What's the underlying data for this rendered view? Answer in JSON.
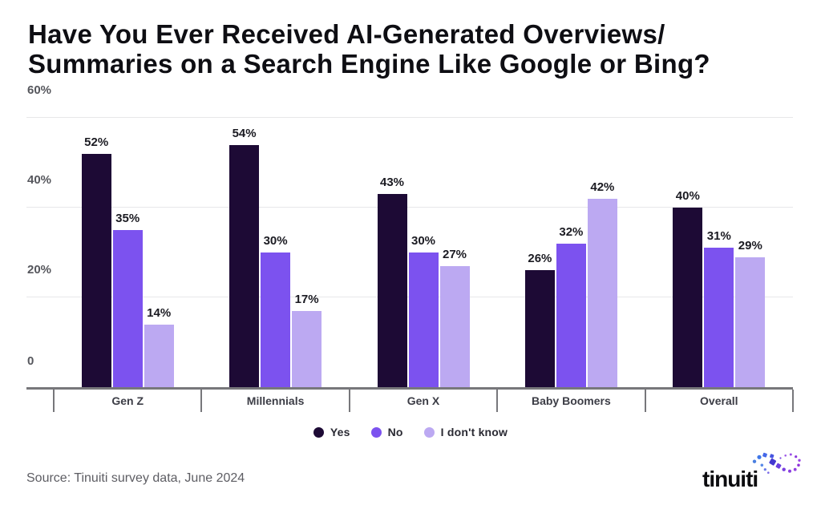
{
  "title": {
    "line1": "Have You Ever Received AI-Generated Overviews/",
    "line2": "Summaries on a Search Engine Like Google or Bing?"
  },
  "chart_data": {
    "type": "bar",
    "title": "Have You Ever Received AI-Generated Overviews/Summaries on a Search Engine Like Google or Bing?",
    "categories": [
      "Gen Z",
      "Millennials",
      "Gen X",
      "Baby Boomers",
      "Overall"
    ],
    "series": [
      {
        "name": "Yes",
        "color": "#1d0a35",
        "values": [
          52,
          54,
          43,
          26,
          40
        ]
      },
      {
        "name": "No",
        "color": "#7c52ef",
        "values": [
          35,
          30,
          30,
          32,
          31
        ]
      },
      {
        "name": "I don't know",
        "color": "#bca9f2",
        "values": [
          14,
          17,
          27,
          42,
          29
        ]
      }
    ],
    "value_label_suffix": "%",
    "xlabel": "",
    "ylabel": "",
    "ylim": [
      0,
      60
    ],
    "grid": true,
    "legend_position": "bottom",
    "y_axis": {
      "ticks": [
        {
          "value": 60,
          "label": "60%"
        },
        {
          "value": 40,
          "label": "40%"
        },
        {
          "value": 20,
          "label": "20%"
        },
        {
          "value": 0,
          "label": "0"
        }
      ]
    }
  },
  "footer": {
    "source": "Source: Tinuiti survey data, June 2024",
    "logo_text": "tinuiti"
  },
  "colors": {
    "yes": "#1d0a35",
    "no": "#7c52ef",
    "dont_know": "#bca9f2",
    "gridline": "#e7e7e9",
    "axis": "#77777b"
  }
}
